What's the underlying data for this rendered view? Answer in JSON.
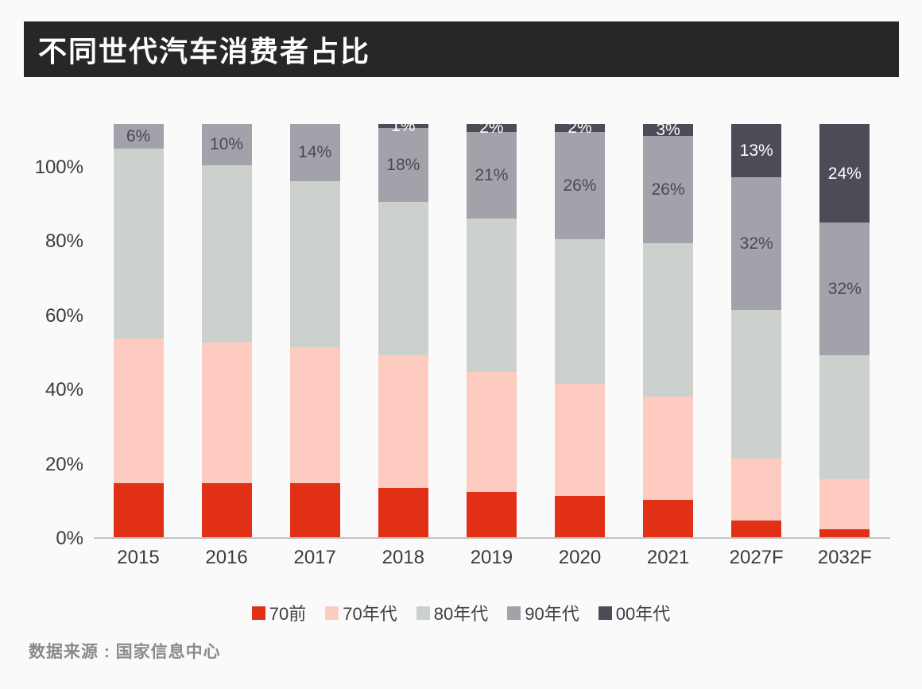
{
  "header": {
    "title": "不同世代汽车消费者占比"
  },
  "source": {
    "text": "数据来源 : 国家信息中心"
  },
  "chart_data": {
    "type": "bar",
    "stacked": true,
    "title": "不同世代汽车消费者占比",
    "xlabel": "",
    "ylabel": "",
    "grid": false,
    "legend_position": "bottom",
    "ylim": [
      0,
      112
    ],
    "categories": [
      "2015",
      "2016",
      "2017",
      "2018",
      "2019",
      "2020",
      "2021",
      "2027F",
      "2032F"
    ],
    "yticks": [
      {
        "value": 0,
        "label": "0%"
      },
      {
        "value": 20,
        "label": "20%"
      },
      {
        "value": 40,
        "label": "40%"
      },
      {
        "value": 60,
        "label": "60%"
      },
      {
        "value": 80,
        "label": "80%"
      },
      {
        "value": 100,
        "label": "100%"
      }
    ],
    "series": [
      {
        "name": "70前",
        "key": "pre-70",
        "color": "#e23017",
        "values": [
          13,
          13,
          13,
          12,
          11,
          10,
          9,
          4,
          2
        ],
        "labels": [
          null,
          null,
          null,
          null,
          null,
          null,
          null,
          null,
          null
        ],
        "label_color": "#ffffff"
      },
      {
        "name": "70年代",
        "key": "70s",
        "color": "#fecbc1",
        "values": [
          35,
          34,
          33,
          32,
          29,
          27,
          25,
          15,
          12
        ],
        "labels": [
          null,
          null,
          null,
          null,
          null,
          null,
          null,
          null,
          null
        ],
        "label_color": "#4a4952"
      },
      {
        "name": "80年代",
        "key": "80s",
        "color": "#cdd1ce",
        "values": [
          46,
          43,
          40,
          37,
          37,
          35,
          37,
          36,
          30
        ],
        "labels": [
          null,
          null,
          null,
          null,
          null,
          null,
          null,
          null,
          null
        ],
        "label_color": "#4a4952"
      },
      {
        "name": "90年代",
        "key": "90s",
        "color": "#a3a2aa",
        "values": [
          6,
          10,
          14,
          18,
          21,
          26,
          26,
          32,
          32
        ],
        "labels": [
          "6%",
          "10%",
          "14%",
          "18%",
          "21%",
          "26%",
          "26%",
          "32%",
          "32%"
        ],
        "label_color": "#4a4952"
      },
      {
        "name": "00年代",
        "key": "00s",
        "color": "#4d4b55",
        "values": [
          0,
          0,
          0,
          1,
          2,
          2,
          3,
          13,
          24
        ],
        "labels": [
          null,
          null,
          null,
          "1%",
          "2%",
          "2%",
          "3%",
          "13%",
          "24%"
        ],
        "label_color": "#ffffff"
      }
    ]
  }
}
